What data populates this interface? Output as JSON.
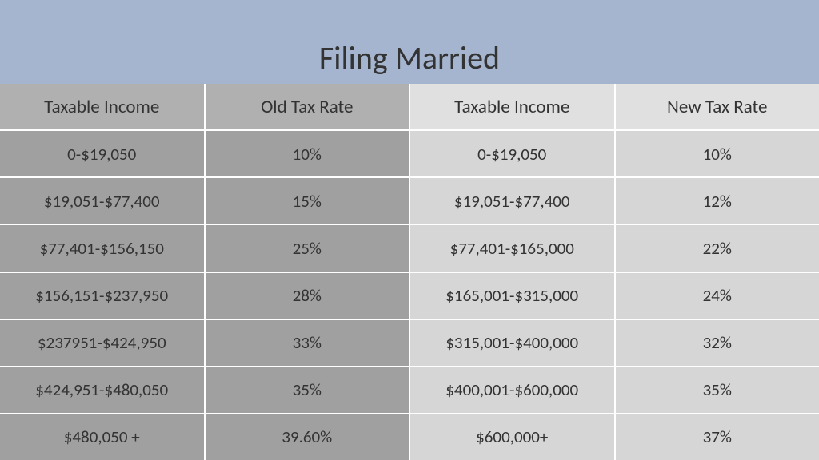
{
  "title": "Filing Married",
  "title_bg_color": "#a5b5cf",
  "columns": [
    "Taxable Income",
    "Old Tax Rate",
    "Taxable Income",
    "New Tax Rate"
  ],
  "rows": [
    [
      "0-$19,050",
      "10%",
      "0-$19,050",
      "10%"
    ],
    [
      "$19,051-$77,400",
      "15%",
      "$19,051-$77,400",
      "12%"
    ],
    [
      "$77,401-$156,150",
      "25%",
      "$77,401-$165,000",
      "22%"
    ],
    [
      "$156,151-$237,950",
      "28%",
      "$165,001-$315,000",
      "24%"
    ],
    [
      "$237951-$424,950",
      "33%",
      "$315,001-$400,000",
      "32%"
    ],
    [
      "$424,951-$480,050",
      "35%",
      "$400,001-$600,000",
      "35%"
    ],
    [
      "$480,050 +",
      "39.60%",
      "$600,000+",
      "37%"
    ]
  ],
  "left_pane_bg": "#a0a0a0",
  "right_pane_bg": "#d6d6d6",
  "header_left_bg": "#b0b0b0",
  "header_right_bg": "#e0e0e0"
}
